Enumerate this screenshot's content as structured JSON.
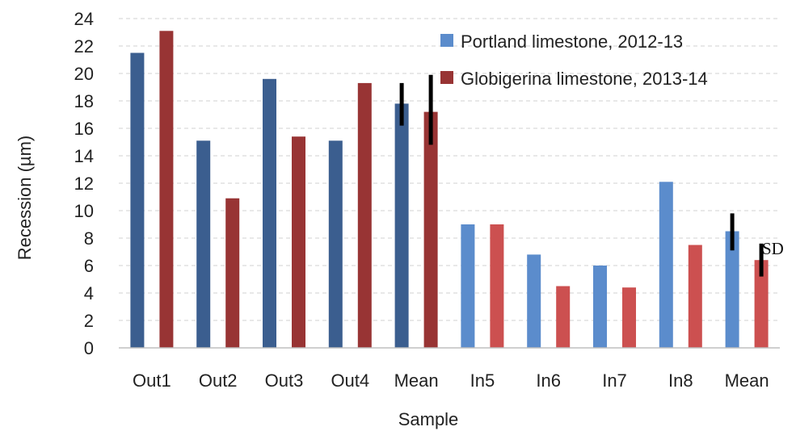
{
  "chart_data": {
    "type": "bar",
    "xlabel": "Sample",
    "ylabel": "Recession (µm)",
    "ylim": [
      0,
      24
    ],
    "yticks": [
      0,
      2,
      4,
      6,
      8,
      10,
      12,
      14,
      16,
      18,
      20,
      22,
      24
    ],
    "grid": true,
    "legend_position": "top-right",
    "categories": [
      "Out1",
      "Out2",
      "Out3",
      "Out4",
      "Mean",
      "In5",
      "In6",
      "In7",
      "In8",
      "Mean"
    ],
    "series": [
      {
        "name": "Portland limestone, 2012-13",
        "values": [
          21.5,
          15.1,
          19.6,
          15.1,
          17.8,
          9.0,
          6.8,
          6.0,
          12.1,
          8.5
        ],
        "colors": [
          "#3b5e8f",
          "#3b5e8f",
          "#3b5e8f",
          "#3b5e8f",
          "#3b5e8f",
          "#5b8ccc",
          "#5b8ccc",
          "#5b8ccc",
          "#5b8ccc",
          "#5b8ccc"
        ],
        "error_bars": {
          "4": [
            16.2,
            19.3
          ],
          "9": [
            7.1,
            9.8
          ]
        }
      },
      {
        "name": "Globigerina limestone, 2013-14",
        "values": [
          23.1,
          10.9,
          15.4,
          19.3,
          17.2,
          9.0,
          4.5,
          4.4,
          7.5,
          6.4
        ],
        "colors": [
          "#983434",
          "#983434",
          "#983434",
          "#983434",
          "#983434",
          "#cc5050",
          "#cc5050",
          "#cc5050",
          "#cc5050",
          "#cc5050"
        ],
        "error_bars": {
          "4": [
            14.8,
            19.9
          ],
          "9": [
            5.2,
            7.6
          ]
        }
      }
    ],
    "annotations": [
      {
        "text": "SD",
        "near_category": 9
      }
    ],
    "legend_colors": [
      "#5b8ccc",
      "#983434"
    ]
  }
}
